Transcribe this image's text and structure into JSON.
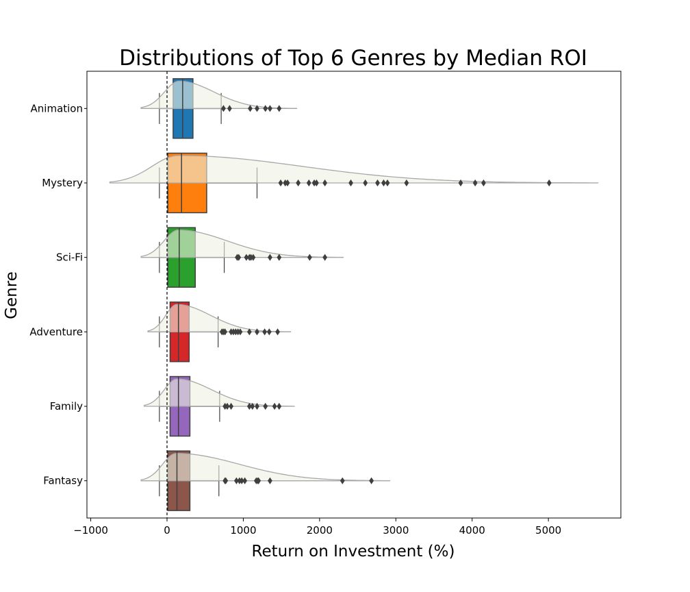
{
  "chart_data": {
    "type": "box",
    "title": "Distributions of Top 6 Genres by Median ROI",
    "xlabel": "Return on Investment (%)",
    "ylabel": "Genre",
    "xlim": [
      -1050,
      5950
    ],
    "xticks": [
      -1000,
      0,
      1000,
      2000,
      3000,
      4000,
      5000
    ],
    "reference_line_x": 0,
    "grid": false,
    "colors": {
      "Animation": "#1f77b4",
      "Mystery": "#ff7f0e",
      "Sci-Fi": "#2ca02c",
      "Adventure": "#d62728",
      "Family": "#9467bd",
      "Fantasy": "#8c564b",
      "density_fill": "#eef2e2",
      "density_line": "#a8a8a8"
    },
    "series": [
      {
        "name": "Animation",
        "q1": 80,
        "median": 205,
        "q3": 340,
        "whisker_low": -100,
        "whisker_high": 710,
        "outliers": [
          740,
          820,
          1090,
          1180,
          1290,
          1350,
          1470
        ],
        "density_range": [
          -340,
          1700
        ],
        "density_peak": 160
      },
      {
        "name": "Mystery",
        "q1": 10,
        "median": 190,
        "q3": 520,
        "whisker_low": -100,
        "whisker_high": 1180,
        "outliers": [
          1490,
          1550,
          1580,
          1720,
          1860,
          1930,
          1960,
          2070,
          2410,
          2600,
          2760,
          2840,
          2890,
          3140,
          3850,
          4040,
          4150,
          5010
        ],
        "density_range": [
          -750,
          5650
        ],
        "density_peak": 150
      },
      {
        "name": "Sci-Fi",
        "q1": 10,
        "median": 160,
        "q3": 370,
        "whisker_low": -100,
        "whisker_high": 750,
        "outliers": [
          920,
          940,
          1040,
          1080,
          1100,
          1130,
          1350,
          1470,
          1870,
          2070
        ],
        "density_range": [
          -340,
          2310
        ],
        "density_peak": 150
      },
      {
        "name": "Adventure",
        "q1": 40,
        "median": 150,
        "q3": 290,
        "whisker_low": -100,
        "whisker_high": 670,
        "outliers": [
          720,
          740,
          760,
          840,
          870,
          900,
          930,
          960,
          1080,
          1180,
          1280,
          1340,
          1450
        ],
        "density_range": [
          -250,
          1620
        ],
        "density_peak": 130
      },
      {
        "name": "Family",
        "q1": 40,
        "median": 150,
        "q3": 300,
        "whisker_low": -100,
        "whisker_high": 690,
        "outliers": [
          760,
          790,
          840,
          1080,
          1120,
          1180,
          1290,
          1410,
          1470
        ],
        "density_range": [
          -300,
          1670
        ],
        "density_peak": 130
      },
      {
        "name": "Fantasy",
        "q1": 10,
        "median": 130,
        "q3": 300,
        "whisker_low": -100,
        "whisker_high": 680,
        "outliers": [
          760,
          770,
          910,
          950,
          980,
          1020,
          1170,
          1190,
          1200,
          1350,
          2300,
          2680
        ],
        "density_range": [
          -340,
          2920
        ],
        "density_peak": 120
      }
    ]
  }
}
